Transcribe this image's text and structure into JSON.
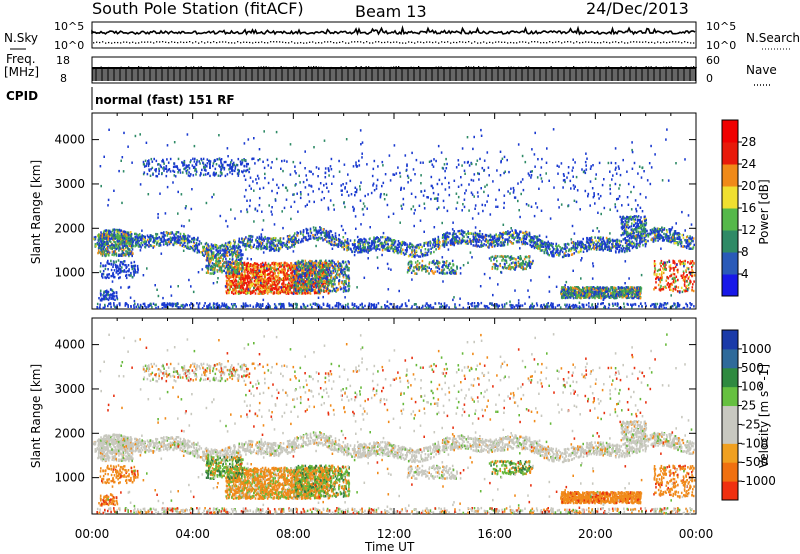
{
  "header": {
    "station": "South Pole Station (fitACF)",
    "beam": "Beam 13",
    "date": "24/Dec/2013"
  },
  "top_panels": {
    "nsky_label": "N.Sky",
    "nsky_ticks": [
      "10^5",
      "10^0"
    ],
    "nsearch_label": "N.Search",
    "nsearch_ticks": [
      "10^5",
      "10^0"
    ],
    "freq_label_1": "Freq.",
    "freq_label_2": "[MHz]",
    "freq_ticks": [
      "18",
      "8"
    ],
    "nave_label": "Nave",
    "nave_ticks": [
      "60",
      "0"
    ],
    "cpid_label": "CPID",
    "cpid_value": "normal (fast) 151 RF"
  },
  "chart_data": [
    {
      "type": "heatmap",
      "name": "power",
      "ylabel": "Slant Range [km]",
      "y_ticks": [
        "1000",
        "2000",
        "3000",
        "4000"
      ],
      "ylim": [
        180,
        4600
      ],
      "colorbar_label": "Power [dB]",
      "colorbar_ticks": [
        "4",
        "8",
        "12",
        "16",
        "20",
        "24",
        "28"
      ],
      "colorbar_colors": [
        "#1818e8",
        "#2a5ab8",
        "#2f8a66",
        "#55b84a",
        "#f0e030",
        "#f08a18",
        "#e81a0a",
        "#f00000"
      ]
    },
    {
      "type": "heatmap",
      "name": "velocity",
      "ylabel": "Slant Range [km]",
      "y_ticks": [
        "1000",
        "2000",
        "3000",
        "4000"
      ],
      "ylim": [
        180,
        4600
      ],
      "colorbar_label": "Velocity [m s^-1]",
      "colorbar_ticks": [
        "1000",
        "500",
        "100",
        "25",
        "-25",
        "-100",
        "-500",
        "-1000"
      ],
      "colorbar_colors": [
        "#1a3aa8",
        "#2f6a9a",
        "#2f8a40",
        "#66c040",
        "#c8c8c0",
        "#c8c8c0",
        "#f0a020",
        "#f07010",
        "#f03010"
      ]
    }
  ],
  "x_axis": {
    "ticks": [
      "00:00",
      "04:00",
      "08:00",
      "12:00",
      "16:00",
      "20:00",
      "00:00"
    ],
    "label": "Time UT"
  },
  "colors": {
    "power_red": "#ee1b0a",
    "power_orange": "#f39018",
    "power_yellow": "#eadf2c",
    "power_green": "#4fb04a",
    "power_teal": "#2e8a66",
    "power_blue": "#1a3ad0",
    "vel_grey": "#c8c8bf",
    "vel_orange": "#f08a1a",
    "vel_green": "#66b83a",
    "vel_darkgreen": "#2e7a40",
    "vel_red": "#e83010"
  }
}
